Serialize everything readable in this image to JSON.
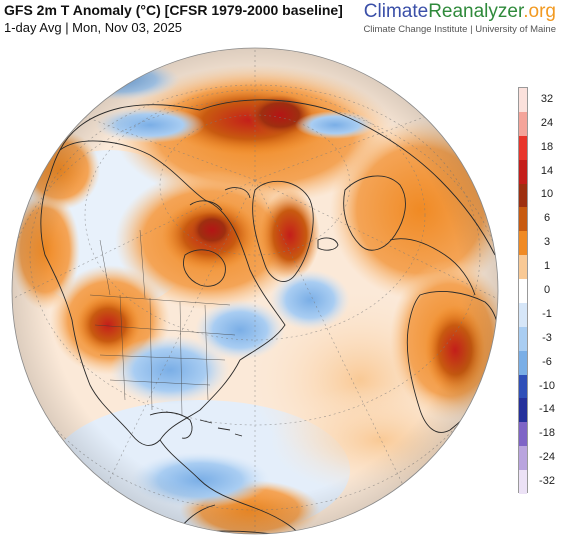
{
  "header": {
    "title": "GFS 2m T Anomaly (°C) [CFSR 1979-2000 baseline]",
    "subtitle": "1-day Avg | Mon, Nov 03, 2025"
  },
  "brand": {
    "part1": "Climate",
    "part2": "Reanalyzer",
    "part3": ".org",
    "sub": "Climate Change Institute | University of Maine",
    "colors": {
      "climate": "#3a4fa8",
      "reanalyzer": "#2f8a3b",
      "org": "#f29a22"
    }
  },
  "legend": {
    "labels": [
      "32",
      "24",
      "18",
      "14",
      "10",
      "6",
      "3",
      "1",
      "0",
      "-1",
      "-3",
      "-6",
      "-10",
      "-14",
      "-18",
      "-24",
      "-32"
    ],
    "colors": [
      "#fbe1dc",
      "#f4a49a",
      "#e8352b",
      "#c41e1a",
      "#9e2f10",
      "#c85a10",
      "#f08a24",
      "#f9c995",
      "#ffffff",
      "#d6e6f8",
      "#a9cdf2",
      "#7aaee6",
      "#2f4fb8",
      "#25309b",
      "#7e64c6",
      "#b9a4de",
      "#ece2f6"
    ]
  }
}
